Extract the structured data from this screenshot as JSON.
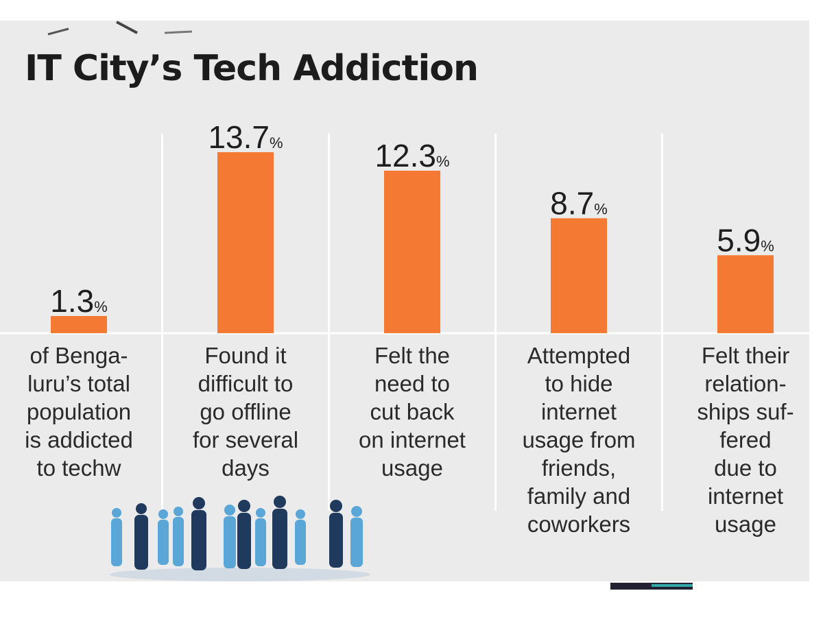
{
  "title": "IT City’s Tech Addiction",
  "colors": {
    "bar": "#f47a33",
    "panel": "#ebebeb",
    "text": "#1e1e1e",
    "divider": "#ffffff",
    "people_dark": "#1f3a5c",
    "people_light": "#5aa6d6"
  },
  "chart_data": {
    "type": "bar",
    "title": "IT City’s Tech Addiction",
    "value_suffix": "%",
    "ylim": [
      0,
      15
    ],
    "grid": false,
    "legend": "none",
    "bars": [
      {
        "value": 1.3,
        "label_lines": [
          "of Benga-",
          "luru’s total",
          "population",
          "is addicted",
          "to techw"
        ]
      },
      {
        "value": 13.7,
        "label_lines": [
          "Found it",
          "difficult to",
          "go offline",
          "for several",
          "days"
        ]
      },
      {
        "value": 12.3,
        "label_lines": [
          "Felt the",
          "need to",
          "cut back",
          "on internet",
          "usage"
        ]
      },
      {
        "value": 8.7,
        "label_lines": [
          "Attempted",
          "to hide",
          "internet",
          "usage from",
          "friends,",
          "family and",
          "coworkers"
        ]
      },
      {
        "value": 5.9,
        "label_lines": [
          "Felt their",
          "relation-",
          "ships suf-",
          "fered",
          "due to",
          "internet",
          "usage"
        ]
      }
    ]
  },
  "decorations": {
    "people_icon": "crowd-silhouette-icon"
  }
}
